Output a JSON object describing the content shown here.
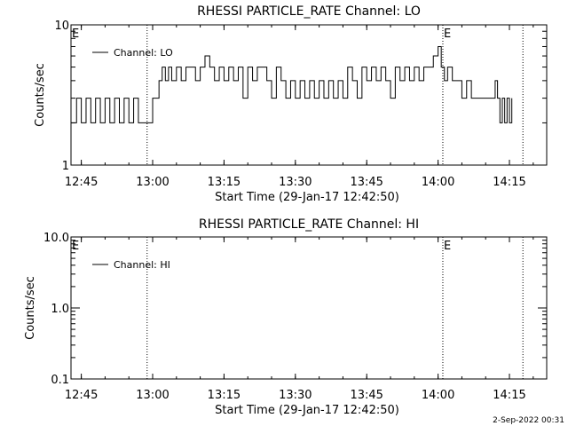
{
  "chart_data": [
    {
      "type": "line",
      "title": "RHESSI PARTICLE_RATE Channel: LO",
      "xlabel": "Start Time (29-Jan-17 12:42:50)",
      "ylabel": "Counts/sec",
      "yscale": "log",
      "ylim": [
        1,
        10
      ],
      "y_ticks": [
        "1",
        "10"
      ],
      "x_ticks": [
        "12:45",
        "13:00",
        "13:15",
        "13:30",
        "13:45",
        "14:00",
        "14:15"
      ],
      "xlim": [
        "12:42:50",
        "14:22:50"
      ],
      "legend": {
        "position": "top-left"
      },
      "markers": [
        {
          "time": "12:42:50",
          "label": "E"
        },
        {
          "time": "12:58:50",
          "label": ""
        },
        {
          "time": "14:01:00",
          "label": "E"
        },
        {
          "time": "14:17:50",
          "label": ""
        }
      ],
      "series": [
        {
          "name": "Channel: LO",
          "x": [
            "12:42:50",
            "12:44:00",
            "12:45:00",
            "12:46:00",
            "12:47:00",
            "12:48:00",
            "12:49:00",
            "12:50:00",
            "12:51:00",
            "12:52:00",
            "12:53:00",
            "12:54:00",
            "12:55:00",
            "12:56:00",
            "12:57:00",
            "12:58:00",
            "12:59:00",
            "13:00:00",
            "13:00:40",
            "13:01:20",
            "13:02:00",
            "13:02:40",
            "13:03:20",
            "13:04:00",
            "13:05:00",
            "13:06:00",
            "13:07:00",
            "13:08:00",
            "13:09:00",
            "13:10:00",
            "13:11:00",
            "13:12:00",
            "13:13:00",
            "13:14:00",
            "13:15:00",
            "13:16:00",
            "13:17:00",
            "13:18:00",
            "13:19:00",
            "13:20:00",
            "13:21:00",
            "13:22:00",
            "13:23:00",
            "13:24:00",
            "13:25:00",
            "13:26:00",
            "13:27:00",
            "13:28:00",
            "13:29:00",
            "13:30:00",
            "13:31:00",
            "13:32:00",
            "13:33:00",
            "13:34:00",
            "13:35:00",
            "13:36:00",
            "13:37:00",
            "13:38:00",
            "13:39:00",
            "13:40:00",
            "13:41:00",
            "13:42:00",
            "13:43:00",
            "13:44:00",
            "13:45:00",
            "13:46:00",
            "13:47:00",
            "13:48:00",
            "13:49:00",
            "13:50:00",
            "13:51:00",
            "13:52:00",
            "13:53:00",
            "13:54:00",
            "13:55:00",
            "13:56:00",
            "13:57:00",
            "13:58:00",
            "13:59:00",
            "14:00:00",
            "14:00:40",
            "14:01:20",
            "14:02:00",
            "14:03:00",
            "14:04:00",
            "14:05:00",
            "14:06:00",
            "14:07:00",
            "14:08:00",
            "14:09:00",
            "14:10:00",
            "14:11:00",
            "14:12:00",
            "14:12:30",
            "14:13:00",
            "14:13:30",
            "14:14:00",
            "14:14:30",
            "14:15:00",
            "14:15:30"
          ],
          "y": [
            2,
            3,
            2,
            3,
            2,
            3,
            2,
            3,
            2,
            3,
            2,
            3,
            2,
            3,
            2,
            2,
            2,
            3,
            3,
            4,
            5,
            4,
            5,
            4,
            5,
            4,
            5,
            5,
            4,
            5,
            6,
            5,
            4,
            5,
            4,
            5,
            4,
            5,
            3,
            5,
            4,
            5,
            5,
            4,
            3,
            5,
            4,
            3,
            4,
            3,
            4,
            3,
            4,
            3,
            4,
            3,
            4,
            3,
            4,
            3,
            5,
            4,
            3,
            5,
            4,
            5,
            4,
            5,
            4,
            3,
            5,
            4,
            5,
            4,
            5,
            4,
            5,
            5,
            6,
            7,
            5,
            4,
            5,
            4,
            4,
            3,
            4,
            3,
            3,
            3,
            3,
            3,
            4,
            3,
            2,
            3,
            2,
            3,
            2,
            3
          ]
        }
      ]
    },
    {
      "type": "line",
      "title": "RHESSI PARTICLE_RATE Channel: HI",
      "xlabel": "Start Time (29-Jan-17 12:42:50)",
      "ylabel": "Counts/sec",
      "yscale": "log",
      "ylim": [
        0.1,
        10
      ],
      "y_ticks": [
        "0.1",
        "1.0",
        "10.0"
      ],
      "x_ticks": [
        "12:45",
        "13:00",
        "13:15",
        "13:30",
        "13:45",
        "14:00",
        "14:15"
      ],
      "xlim": [
        "12:42:50",
        "14:22:50"
      ],
      "legend": {
        "position": "top-left"
      },
      "markers": [
        {
          "time": "12:42:50",
          "label": "E"
        },
        {
          "time": "12:58:50",
          "label": ""
        },
        {
          "time": "14:01:00",
          "label": "E"
        },
        {
          "time": "14:17:50",
          "label": ""
        }
      ],
      "series": [
        {
          "name": "Channel: HI",
          "x": [],
          "y": []
        }
      ]
    }
  ],
  "footer": {
    "date": "2-Sep-2022 00:31"
  }
}
